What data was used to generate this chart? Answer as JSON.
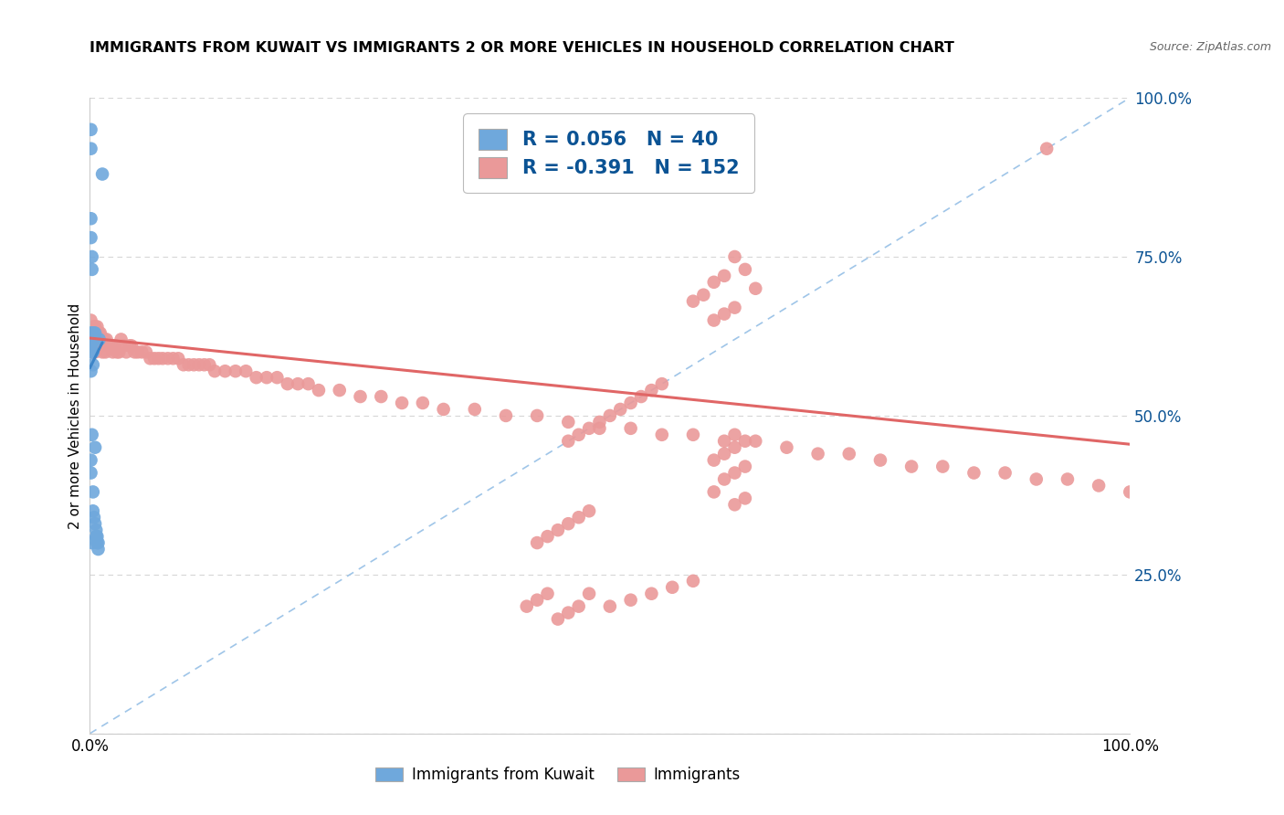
{
  "title": "IMMIGRANTS FROM KUWAIT VS IMMIGRANTS 2 OR MORE VEHICLES IN HOUSEHOLD CORRELATION CHART",
  "source": "Source: ZipAtlas.com",
  "ylabel": "2 or more Vehicles in Household",
  "legend1_R": "0.056",
  "legend1_N": "40",
  "legend2_R": "-0.391",
  "legend2_N": "152",
  "blue_color": "#6fa8dc",
  "pink_color": "#ea9999",
  "blue_line_color": "#3d85c8",
  "pink_line_color": "#e06666",
  "dashed_line_color": "#9fc5e8",
  "text_color": "#0b5394",
  "title_color": "#000000",
  "source_color": "#666666",
  "bg_color": "#ffffff",
  "grid_color": "#cccccc",
  "blue_scatter_x": [
    0.0,
    0.0,
    0.001,
    0.001,
    0.001,
    0.001,
    0.001,
    0.001,
    0.001,
    0.001,
    0.001,
    0.001,
    0.001,
    0.002,
    0.002,
    0.002,
    0.002,
    0.002,
    0.002,
    0.002,
    0.003,
    0.003,
    0.003,
    0.003,
    0.003,
    0.004,
    0.004,
    0.004,
    0.005,
    0.005,
    0.005,
    0.005,
    0.006,
    0.006,
    0.007,
    0.007,
    0.008,
    0.008,
    0.009,
    0.012
  ],
  "blue_scatter_y": [
    0.62,
    0.61,
    0.95,
    0.92,
    0.81,
    0.78,
    0.63,
    0.62,
    0.61,
    0.6,
    0.57,
    0.43,
    0.41,
    0.75,
    0.73,
    0.63,
    0.62,
    0.61,
    0.47,
    0.3,
    0.62,
    0.6,
    0.58,
    0.38,
    0.35,
    0.63,
    0.62,
    0.34,
    0.63,
    0.62,
    0.45,
    0.33,
    0.32,
    0.31,
    0.31,
    0.3,
    0.3,
    0.29,
    0.62,
    0.88
  ],
  "pink_scatter_x": [
    0.0,
    0.0,
    0.001,
    0.001,
    0.001,
    0.001,
    0.002,
    0.002,
    0.002,
    0.003,
    0.003,
    0.003,
    0.004,
    0.004,
    0.004,
    0.005,
    0.005,
    0.005,
    0.006,
    0.006,
    0.007,
    0.007,
    0.008,
    0.008,
    0.009,
    0.009,
    0.01,
    0.01,
    0.012,
    0.012,
    0.014,
    0.015,
    0.016,
    0.018,
    0.02,
    0.022,
    0.024,
    0.026,
    0.028,
    0.03,
    0.032,
    0.035,
    0.038,
    0.04,
    0.043,
    0.046,
    0.05,
    0.054,
    0.058,
    0.062,
    0.066,
    0.07,
    0.075,
    0.08,
    0.085,
    0.09,
    0.095,
    0.1,
    0.105,
    0.11,
    0.115,
    0.12,
    0.13,
    0.14,
    0.15,
    0.16,
    0.17,
    0.18,
    0.19,
    0.2,
    0.21,
    0.22,
    0.24,
    0.26,
    0.28,
    0.3,
    0.32,
    0.34,
    0.37,
    0.4,
    0.43,
    0.46,
    0.49,
    0.52,
    0.55,
    0.58,
    0.61,
    0.64,
    0.67,
    0.7,
    0.73,
    0.76,
    0.79,
    0.82,
    0.85,
    0.88,
    0.91,
    0.94,
    0.97,
    1.0,
    0.62,
    0.63,
    0.61,
    0.6,
    0.64,
    0.59,
    0.58,
    0.62,
    0.61,
    0.6,
    0.63,
    0.62,
    0.61,
    0.6,
    0.63,
    0.62,
    0.61,
    0.6,
    0.63,
    0.62,
    0.58,
    0.56,
    0.54,
    0.52,
    0.5,
    0.48,
    0.47,
    0.46,
    0.45,
    0.44,
    0.43,
    0.42,
    0.55,
    0.54,
    0.53,
    0.52,
    0.51,
    0.5,
    0.49,
    0.48,
    0.47,
    0.46,
    0.48,
    0.47,
    0.46,
    0.45,
    0.44,
    0.43,
    0.92,
    0.62
  ],
  "pink_scatter_y": [
    0.62,
    0.61,
    0.65,
    0.63,
    0.61,
    0.6,
    0.63,
    0.61,
    0.6,
    0.64,
    0.62,
    0.61,
    0.63,
    0.61,
    0.6,
    0.64,
    0.62,
    0.6,
    0.63,
    0.61,
    0.64,
    0.62,
    0.63,
    0.61,
    0.63,
    0.61,
    0.63,
    0.61,
    0.62,
    0.6,
    0.62,
    0.6,
    0.62,
    0.61,
    0.61,
    0.6,
    0.61,
    0.6,
    0.6,
    0.62,
    0.61,
    0.6,
    0.61,
    0.61,
    0.6,
    0.6,
    0.6,
    0.6,
    0.59,
    0.59,
    0.59,
    0.59,
    0.59,
    0.59,
    0.59,
    0.58,
    0.58,
    0.58,
    0.58,
    0.58,
    0.58,
    0.57,
    0.57,
    0.57,
    0.57,
    0.56,
    0.56,
    0.56,
    0.55,
    0.55,
    0.55,
    0.54,
    0.54,
    0.53,
    0.53,
    0.52,
    0.52,
    0.51,
    0.51,
    0.5,
    0.5,
    0.49,
    0.48,
    0.48,
    0.47,
    0.47,
    0.46,
    0.46,
    0.45,
    0.44,
    0.44,
    0.43,
    0.42,
    0.42,
    0.41,
    0.41,
    0.4,
    0.4,
    0.39,
    0.38,
    0.75,
    0.73,
    0.72,
    0.71,
    0.7,
    0.69,
    0.68,
    0.67,
    0.66,
    0.65,
    0.46,
    0.45,
    0.44,
    0.43,
    0.42,
    0.41,
    0.4,
    0.38,
    0.37,
    0.36,
    0.24,
    0.23,
    0.22,
    0.21,
    0.2,
    0.22,
    0.2,
    0.19,
    0.18,
    0.22,
    0.21,
    0.2,
    0.55,
    0.54,
    0.53,
    0.52,
    0.51,
    0.5,
    0.49,
    0.48,
    0.47,
    0.46,
    0.35,
    0.34,
    0.33,
    0.32,
    0.31,
    0.3,
    0.92,
    0.47
  ],
  "blue_line_x": [
    0.0,
    0.012
  ],
  "blue_line_y_start": 0.575,
  "blue_line_y_end": 0.615,
  "pink_line_x": [
    0.0,
    1.0
  ],
  "pink_line_y_start": 0.622,
  "pink_line_y_end": 0.455,
  "xlim": [
    0,
    1.0
  ],
  "ylim": [
    0,
    1.0
  ],
  "yticks": [
    0.0,
    0.25,
    0.5,
    0.75,
    1.0
  ],
  "ytick_labels": [
    "",
    "25.0%",
    "50.0%",
    "75.0%",
    "100.0%"
  ],
  "xticks": [
    0.0,
    1.0
  ],
  "xtick_labels": [
    "0.0%",
    "100.0%"
  ]
}
